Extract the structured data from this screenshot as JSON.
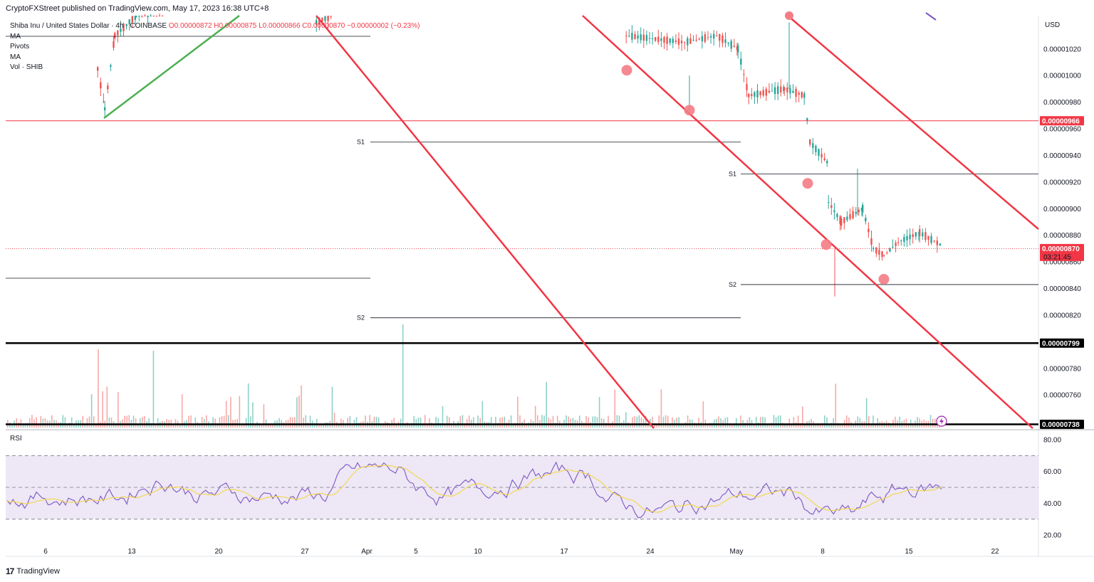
{
  "header": {
    "published": "CryptoFXStreet published on TradingView.com, May 17, 2023 16:38 UTC+8"
  },
  "legend": {
    "symbol": "Shiba Inu / United States Dollar · 4h · COINBASE",
    "ohlc": "O0.00000872 H0.00000875 L0.00000866 C0.00000870 −0.00000002 (−0.23%)",
    "lines": [
      "MA",
      "Pivots",
      "MA",
      "Vol · SHIB"
    ]
  },
  "rsi_label": "RSI",
  "footer": {
    "brand": "TradingView",
    "logo": "tradingview-logo-icon"
  },
  "colors": {
    "up": "#26a69a",
    "down": "#ef5350",
    "trend_red": "#f23645",
    "trend_green": "#4caf50",
    "rsi_line": "#7e57c2",
    "rsi_ma": "#f5d742",
    "rsi_band": "#ede7f6",
    "black": "#000000"
  },
  "chart_data": [
    {
      "type": "candlestick",
      "currency_label": "USD",
      "y_ticks": [
        "0.00001020",
        "0.00001000",
        "0.00000980",
        "0.00000960",
        "0.00000940",
        "0.00000920",
        "0.00000900",
        "0.00000880",
        "0.00000860",
        "0.00000840",
        "0.00000820",
        "0.00000800",
        "0.00000780",
        "0.00000760"
      ],
      "x_ticks": [
        "6",
        "13",
        "20",
        "27",
        "Apr",
        "5",
        "10",
        "17",
        "24",
        "May",
        "8",
        "15",
        "22"
      ],
      "ylim": [
        7.35e-06,
        1.045e-05
      ],
      "price_tags": [
        {
          "label": "0.00000966",
          "value": 9.66e-06,
          "style": "red"
        },
        {
          "label": "0.00000870",
          "sublabel": "03:21:45",
          "value": 8.7e-06,
          "style": "red"
        },
        {
          "label": "0.00000799",
          "value": 7.99e-06,
          "style": "black"
        },
        {
          "label": "0.00000738",
          "value": 7.38e-06,
          "style": "black"
        }
      ],
      "pivot_labels": [
        {
          "label": "S1",
          "value": 9.5e-06
        },
        {
          "label": "S2",
          "value": 8.18e-06
        },
        {
          "label": "S1",
          "value": 9.26e-06
        },
        {
          "label": "S2",
          "value": 8.43e-06
        }
      ],
      "swing_points": [
        1.004e-05,
        9.74e-06,
        9.19e-06,
        8.73e-06,
        8.47e-06
      ]
    },
    {
      "type": "line",
      "name": "RSI",
      "y_ticks": [
        "80.00",
        "60.00",
        "40.00",
        "20.00"
      ],
      "ylim": [
        20,
        80
      ],
      "bands": [
        30,
        50,
        70
      ]
    }
  ]
}
